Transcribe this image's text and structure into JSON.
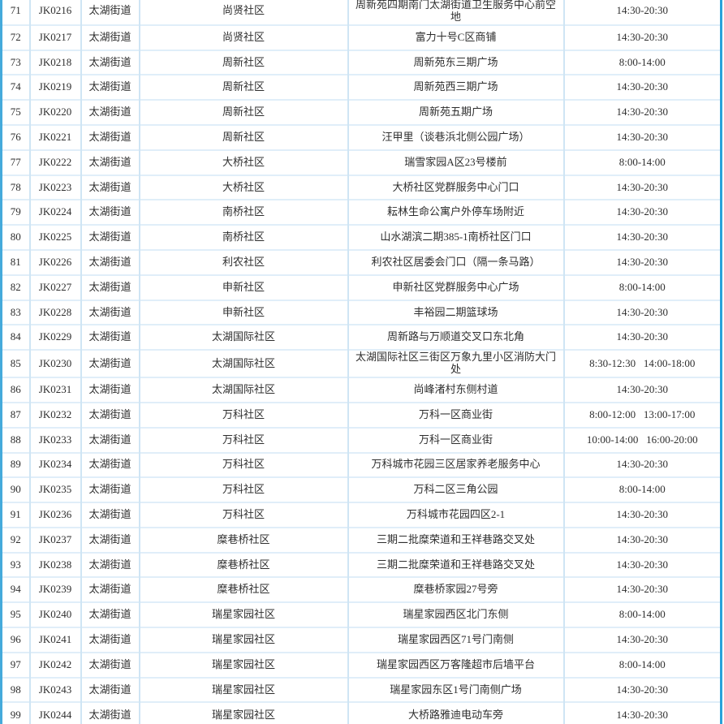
{
  "table": {
    "column_names": [
      "index",
      "site_code",
      "street",
      "community",
      "location",
      "service_time"
    ],
    "colors": {
      "row_divider": "#e0eef9",
      "column_divider": "#cfe5f4",
      "outer_border_left": "#45aadb",
      "outer_border_right": "#2aa2da",
      "text": "#2e2e2e",
      "background": "#ffffff"
    },
    "rows": [
      {
        "index": "71",
        "code": "JK0216",
        "street": "太湖街道",
        "community": "尚贤社区",
        "location": "周新苑四期南门太湖街道卫生服务中心前空地",
        "time": "14:30-20:30"
      },
      {
        "index": "72",
        "code": "JK0217",
        "street": "太湖街道",
        "community": "尚贤社区",
        "location": "富力十号C区商铺",
        "time": "14:30-20:30"
      },
      {
        "index": "73",
        "code": "JK0218",
        "street": "太湖街道",
        "community": "周新社区",
        "location": "周新苑东三期广场",
        "time": "8:00-14:00"
      },
      {
        "index": "74",
        "code": "JK0219",
        "street": "太湖街道",
        "community": "周新社区",
        "location": "周新苑西三期广场",
        "time": "14:30-20:30"
      },
      {
        "index": "75",
        "code": "JK0220",
        "street": "太湖街道",
        "community": "周新社区",
        "location": "周新苑五期广场",
        "time": "14:30-20:30"
      },
      {
        "index": "76",
        "code": "JK0221",
        "street": "太湖街道",
        "community": "周新社区",
        "location": "汪甲里（谈巷浜北侧公园广场）",
        "time": "14:30-20:30"
      },
      {
        "index": "77",
        "code": "JK0222",
        "street": "太湖街道",
        "community": "大桥社区",
        "location": "瑞雪家园A区23号楼前",
        "time": "8:00-14:00"
      },
      {
        "index": "78",
        "code": "JK0223",
        "street": "太湖街道",
        "community": "大桥社区",
        "location": "大桥社区党群服务中心门口",
        "time": "14:30-20:30"
      },
      {
        "index": "79",
        "code": "JK0224",
        "street": "太湖街道",
        "community": "南桥社区",
        "location": "耘林生命公寓户外停车场附近",
        "time": "14:30-20:30"
      },
      {
        "index": "80",
        "code": "JK0225",
        "street": "太湖街道",
        "community": "南桥社区",
        "location": "山水湖滨二期385-1南桥社区门口",
        "time": "14:30-20:30"
      },
      {
        "index": "81",
        "code": "JK0226",
        "street": "太湖街道",
        "community": "利农社区",
        "location": "利农社区居委会门口（隔一条马路）",
        "time": "14:30-20:30"
      },
      {
        "index": "82",
        "code": "JK0227",
        "street": "太湖街道",
        "community": "申新社区",
        "location": "申新社区党群服务中心广场",
        "time": "8:00-14:00"
      },
      {
        "index": "83",
        "code": "JK0228",
        "street": "太湖街道",
        "community": "申新社区",
        "location": "丰裕园二期篮球场",
        "time": "14:30-20:30"
      },
      {
        "index": "84",
        "code": "JK0229",
        "street": "太湖街道",
        "community": "太湖国际社区",
        "location": "周新路与万顺道交叉口东北角",
        "time": "14:30-20:30"
      },
      {
        "index": "85",
        "code": "JK0230",
        "street": "太湖街道",
        "community": "太湖国际社区",
        "location": "太湖国际社区三街区万象九里小区消防大门处",
        "time": "8:30-12:30   14:00-18:00"
      },
      {
        "index": "86",
        "code": "JK0231",
        "street": "太湖街道",
        "community": "太湖国际社区",
        "location": "尚峰渚村东侧村道",
        "time": "14:30-20:30"
      },
      {
        "index": "87",
        "code": "JK0232",
        "street": "太湖街道",
        "community": "万科社区",
        "location": "万科一区商业街",
        "time": "8:00-12:00   13:00-17:00"
      },
      {
        "index": "88",
        "code": "JK0233",
        "street": "太湖街道",
        "community": "万科社区",
        "location": "万科一区商业街",
        "time": "10:00-14:00   16:00-20:00"
      },
      {
        "index": "89",
        "code": "JK0234",
        "street": "太湖街道",
        "community": "万科社区",
        "location": "万科城市花园三区居家养老服务中心",
        "time": "14:30-20:30"
      },
      {
        "index": "90",
        "code": "JK0235",
        "street": "太湖街道",
        "community": "万科社区",
        "location": "万科二区三角公园",
        "time": "8:00-14:00"
      },
      {
        "index": "91",
        "code": "JK0236",
        "street": "太湖街道",
        "community": "万科社区",
        "location": "万科城市花园四区2-1",
        "time": "14:30-20:30"
      },
      {
        "index": "92",
        "code": "JK0237",
        "street": "太湖街道",
        "community": "糜巷桥社区",
        "location": "三期二批糜荣道和王祥巷路交叉处",
        "time": "14:30-20:30"
      },
      {
        "index": "93",
        "code": "JK0238",
        "street": "太湖街道",
        "community": "糜巷桥社区",
        "location": "三期二批糜荣道和王祥巷路交叉处",
        "time": "14:30-20:30"
      },
      {
        "index": "94",
        "code": "JK0239",
        "street": "太湖街道",
        "community": "糜巷桥社区",
        "location": "糜巷桥家园27号旁",
        "time": "14:30-20:30"
      },
      {
        "index": "95",
        "code": "JK0240",
        "street": "太湖街道",
        "community": "瑞星家园社区",
        "location": "瑞星家园西区北门东侧",
        "time": "8:00-14:00"
      },
      {
        "index": "96",
        "code": "JK0241",
        "street": "太湖街道",
        "community": "瑞星家园社区",
        "location": "瑞星家园西区71号门南侧",
        "time": "14:30-20:30"
      },
      {
        "index": "97",
        "code": "JK0242",
        "street": "太湖街道",
        "community": "瑞星家园社区",
        "location": "瑞星家园西区万客隆超市后墙平台",
        "time": "8:00-14:00"
      },
      {
        "index": "98",
        "code": "JK0243",
        "street": "太湖街道",
        "community": "瑞星家园社区",
        "location": "瑞星家园东区1号门南侧广场",
        "time": "14:30-20:30"
      },
      {
        "index": "99",
        "code": "JK0244",
        "street": "太湖街道",
        "community": "瑞星家园社区",
        "location": "大桥路雅迪电动车旁",
        "time": "14:30-20:30"
      }
    ]
  }
}
